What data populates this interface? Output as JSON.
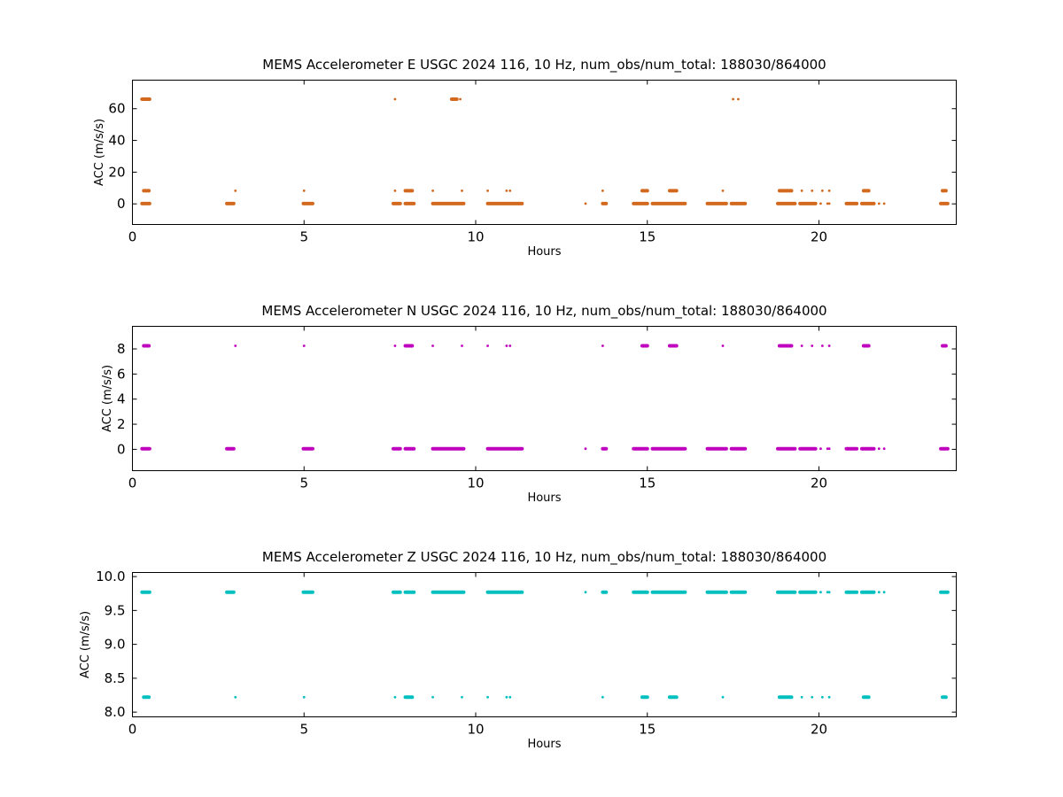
{
  "chart_data": [
    {
      "type": "scatter",
      "title": "MEMS Accelerometer E USGC 2024 116, 10 Hz, num_obs/num_total: 188030/864000",
      "xlabel": "Hours",
      "ylabel": "ACC (m/s/s)",
      "xlim": [
        0,
        24
      ],
      "ylim": [
        -13,
        78
      ],
      "xticks": [
        0,
        5,
        10,
        15,
        20
      ],
      "yticks": [
        0,
        20,
        40,
        60
      ],
      "color": "#d2691e",
      "grid": false,
      "series": [
        {
          "segments": [
            {
              "y": 0.2,
              "x_start": 0.28,
              "x_end": 0.5
            },
            {
              "y": 0.2,
              "x_start": 2.75,
              "x_end": 2.95
            },
            {
              "y": 0.2,
              "x_start": 4.98,
              "x_end": 5.25
            },
            {
              "y": 0.2,
              "x_start": 7.6,
              "x_end": 7.8
            },
            {
              "y": 0.2,
              "x_start": 7.95,
              "x_end": 8.2
            },
            {
              "y": 0.2,
              "x_start": 8.75,
              "x_end": 9.65
            },
            {
              "y": 0.2,
              "x_start": 10.35,
              "x_end": 11.35
            },
            {
              "y": 0.2,
              "x_start": 13.7,
              "x_end": 13.8
            },
            {
              "y": 0.2,
              "x_start": 14.6,
              "x_end": 15.0
            },
            {
              "y": 0.2,
              "x_start": 15.15,
              "x_end": 16.1
            },
            {
              "y": 0.2,
              "x_start": 16.75,
              "x_end": 17.3
            },
            {
              "y": 0.2,
              "x_start": 17.45,
              "x_end": 17.85
            },
            {
              "y": 0.2,
              "x_start": 18.8,
              "x_end": 19.3
            },
            {
              "y": 0.2,
              "x_start": 19.45,
              "x_end": 19.9
            },
            {
              "y": 0.2,
              "x_start": 20.8,
              "x_end": 21.1
            },
            {
              "y": 0.2,
              "x_start": 21.25,
              "x_end": 21.6
            },
            {
              "y": 0.2,
              "x_start": 23.55,
              "x_end": 23.75
            },
            {
              "y": 8.3,
              "x_start": 0.33,
              "x_end": 0.48
            },
            {
              "y": 8.3,
              "x_start": 7.95,
              "x_end": 8.15
            },
            {
              "y": 8.3,
              "x_start": 14.85,
              "x_end": 15.0
            },
            {
              "y": 8.3,
              "x_start": 15.65,
              "x_end": 15.85
            },
            {
              "y": 8.3,
              "x_start": 18.85,
              "x_end": 19.2
            },
            {
              "y": 8.3,
              "x_start": 21.3,
              "x_end": 21.45
            },
            {
              "y": 8.3,
              "x_start": 23.6,
              "x_end": 23.7
            },
            {
              "y": 66,
              "x_start": 0.28,
              "x_end": 0.5
            },
            {
              "y": 66,
              "x_start": 9.3,
              "x_end": 9.45
            }
          ],
          "points": [
            {
              "x": 13.2,
              "y": 0.2
            },
            {
              "x": 20.05,
              "y": 0.2
            },
            {
              "x": 20.25,
              "y": 0.2
            },
            {
              "x": 20.3,
              "y": 0.2
            },
            {
              "x": 21.75,
              "y": 0.2
            },
            {
              "x": 21.9,
              "y": 0.2
            },
            {
              "x": 3.0,
              "y": 8.3
            },
            {
              "x": 5.0,
              "y": 8.3
            },
            {
              "x": 7.65,
              "y": 8.3
            },
            {
              "x": 8.75,
              "y": 8.3
            },
            {
              "x": 9.6,
              "y": 8.3
            },
            {
              "x": 10.35,
              "y": 8.3
            },
            {
              "x": 10.9,
              "y": 8.3
            },
            {
              "x": 11.0,
              "y": 8.3
            },
            {
              "x": 13.7,
              "y": 8.3
            },
            {
              "x": 17.2,
              "y": 8.3
            },
            {
              "x": 19.5,
              "y": 8.3
            },
            {
              "x": 19.8,
              "y": 8.3
            },
            {
              "x": 20.1,
              "y": 8.3
            },
            {
              "x": 20.3,
              "y": 8.3
            },
            {
              "x": 7.65,
              "y": 66
            },
            {
              "x": 9.55,
              "y": 66
            },
            {
              "x": 17.5,
              "y": 66
            },
            {
              "x": 17.65,
              "y": 66
            }
          ]
        }
      ]
    },
    {
      "type": "scatter",
      "title": "MEMS Accelerometer N USGC 2024 116, 10 Hz, num_obs/num_total: 188030/864000",
      "xlabel": "Hours",
      "ylabel": "ACC (m/s/s)",
      "xlim": [
        0,
        24
      ],
      "ylim": [
        -1.7,
        9.8
      ],
      "xticks": [
        0,
        5,
        10,
        15,
        20
      ],
      "yticks": [
        0,
        2,
        4,
        6,
        8
      ],
      "color": "#bf00bf",
      "grid": false,
      "series": [
        {
          "segments": [
            {
              "y": 0.05,
              "x_start": 0.28,
              "x_end": 0.5
            },
            {
              "y": 0.05,
              "x_start": 2.75,
              "x_end": 2.95
            },
            {
              "y": 0.05,
              "x_start": 4.98,
              "x_end": 5.25
            },
            {
              "y": 0.05,
              "x_start": 7.6,
              "x_end": 7.8
            },
            {
              "y": 0.05,
              "x_start": 7.95,
              "x_end": 8.2
            },
            {
              "y": 0.05,
              "x_start": 8.75,
              "x_end": 9.65
            },
            {
              "y": 0.05,
              "x_start": 10.35,
              "x_end": 11.35
            },
            {
              "y": 0.05,
              "x_start": 13.7,
              "x_end": 13.8
            },
            {
              "y": 0.05,
              "x_start": 14.6,
              "x_end": 15.0
            },
            {
              "y": 0.05,
              "x_start": 15.15,
              "x_end": 16.1
            },
            {
              "y": 0.05,
              "x_start": 16.75,
              "x_end": 17.3
            },
            {
              "y": 0.05,
              "x_start": 17.45,
              "x_end": 17.85
            },
            {
              "y": 0.05,
              "x_start": 18.8,
              "x_end": 19.3
            },
            {
              "y": 0.05,
              "x_start": 19.45,
              "x_end": 19.9
            },
            {
              "y": 0.05,
              "x_start": 20.8,
              "x_end": 21.1
            },
            {
              "y": 0.05,
              "x_start": 21.25,
              "x_end": 21.6
            },
            {
              "y": 0.05,
              "x_start": 23.55,
              "x_end": 23.75
            },
            {
              "y": 8.25,
              "x_start": 0.33,
              "x_end": 0.48
            },
            {
              "y": 8.25,
              "x_start": 7.95,
              "x_end": 8.15
            },
            {
              "y": 8.25,
              "x_start": 14.85,
              "x_end": 15.0
            },
            {
              "y": 8.25,
              "x_start": 15.65,
              "x_end": 15.85
            },
            {
              "y": 8.25,
              "x_start": 18.85,
              "x_end": 19.2
            },
            {
              "y": 8.25,
              "x_start": 21.3,
              "x_end": 21.45
            },
            {
              "y": 8.25,
              "x_start": 23.6,
              "x_end": 23.7
            }
          ],
          "points": [
            {
              "x": 13.2,
              "y": 0.05
            },
            {
              "x": 20.05,
              "y": 0.05
            },
            {
              "x": 20.25,
              "y": 0.05
            },
            {
              "x": 20.3,
              "y": 0.05
            },
            {
              "x": 21.75,
              "y": 0.05
            },
            {
              "x": 21.9,
              "y": 0.05
            },
            {
              "x": 3.0,
              "y": 8.25
            },
            {
              "x": 5.0,
              "y": 8.25
            },
            {
              "x": 7.65,
              "y": 8.25
            },
            {
              "x": 8.75,
              "y": 8.25
            },
            {
              "x": 9.6,
              "y": 8.25
            },
            {
              "x": 10.35,
              "y": 8.25
            },
            {
              "x": 10.9,
              "y": 8.25
            },
            {
              "x": 11.0,
              "y": 8.25
            },
            {
              "x": 13.7,
              "y": 8.25
            },
            {
              "x": 17.2,
              "y": 8.25
            },
            {
              "x": 19.5,
              "y": 8.25
            },
            {
              "x": 19.8,
              "y": 8.25
            },
            {
              "x": 20.1,
              "y": 8.25
            },
            {
              "x": 20.3,
              "y": 8.25
            }
          ]
        }
      ]
    },
    {
      "type": "scatter",
      "title": "MEMS Accelerometer Z USGC 2024 116, 10 Hz, num_obs/num_total: 188030/864000",
      "xlabel": "Hours",
      "ylabel": "ACC (m/s/s)",
      "xlim": [
        0,
        24
      ],
      "ylim": [
        7.93,
        10.06
      ],
      "xticks": [
        0,
        5,
        10,
        15,
        20
      ],
      "yticks": [
        8.0,
        8.5,
        9.0,
        9.5,
        10.0
      ],
      "ytick_labels": [
        "8.0",
        "8.5",
        "9.0",
        "9.5",
        "10.0"
      ],
      "color": "#00bfbf",
      "grid": false,
      "series": [
        {
          "segments": [
            {
              "y": 9.77,
              "x_start": 0.28,
              "x_end": 0.5
            },
            {
              "y": 9.77,
              "x_start": 2.75,
              "x_end": 2.95
            },
            {
              "y": 9.77,
              "x_start": 4.98,
              "x_end": 5.25
            },
            {
              "y": 9.77,
              "x_start": 7.6,
              "x_end": 7.8
            },
            {
              "y": 9.77,
              "x_start": 7.95,
              "x_end": 8.2
            },
            {
              "y": 9.77,
              "x_start": 8.75,
              "x_end": 9.65
            },
            {
              "y": 9.77,
              "x_start": 10.35,
              "x_end": 11.35
            },
            {
              "y": 9.77,
              "x_start": 13.7,
              "x_end": 13.8
            },
            {
              "y": 9.77,
              "x_start": 14.6,
              "x_end": 15.0
            },
            {
              "y": 9.77,
              "x_start": 15.15,
              "x_end": 16.1
            },
            {
              "y": 9.77,
              "x_start": 16.75,
              "x_end": 17.3
            },
            {
              "y": 9.77,
              "x_start": 17.45,
              "x_end": 17.85
            },
            {
              "y": 9.77,
              "x_start": 18.8,
              "x_end": 19.3
            },
            {
              "y": 9.77,
              "x_start": 19.45,
              "x_end": 19.9
            },
            {
              "y": 9.77,
              "x_start": 20.8,
              "x_end": 21.1
            },
            {
              "y": 9.77,
              "x_start": 21.25,
              "x_end": 21.6
            },
            {
              "y": 9.77,
              "x_start": 23.55,
              "x_end": 23.75
            },
            {
              "y": 8.22,
              "x_start": 0.33,
              "x_end": 0.48
            },
            {
              "y": 8.22,
              "x_start": 7.95,
              "x_end": 8.15
            },
            {
              "y": 8.22,
              "x_start": 14.85,
              "x_end": 15.0
            },
            {
              "y": 8.22,
              "x_start": 15.65,
              "x_end": 15.85
            },
            {
              "y": 8.22,
              "x_start": 18.85,
              "x_end": 19.2
            },
            {
              "y": 8.22,
              "x_start": 21.3,
              "x_end": 21.45
            },
            {
              "y": 8.22,
              "x_start": 23.6,
              "x_end": 23.7
            }
          ],
          "points": [
            {
              "x": 13.2,
              "y": 9.77
            },
            {
              "x": 20.05,
              "y": 9.77
            },
            {
              "x": 20.25,
              "y": 9.77
            },
            {
              "x": 20.3,
              "y": 9.77
            },
            {
              "x": 21.75,
              "y": 9.77
            },
            {
              "x": 21.9,
              "y": 9.77
            },
            {
              "x": 3.0,
              "y": 8.22
            },
            {
              "x": 5.0,
              "y": 8.22
            },
            {
              "x": 7.65,
              "y": 8.22
            },
            {
              "x": 8.75,
              "y": 8.22
            },
            {
              "x": 9.6,
              "y": 8.22
            },
            {
              "x": 10.35,
              "y": 8.22
            },
            {
              "x": 10.9,
              "y": 8.22
            },
            {
              "x": 11.0,
              "y": 8.22
            },
            {
              "x": 13.7,
              "y": 8.22
            },
            {
              "x": 17.2,
              "y": 8.22
            },
            {
              "x": 19.5,
              "y": 8.22
            },
            {
              "x": 19.8,
              "y": 8.22
            },
            {
              "x": 20.1,
              "y": 8.22
            },
            {
              "x": 20.3,
              "y": 8.22
            }
          ]
        }
      ]
    }
  ]
}
